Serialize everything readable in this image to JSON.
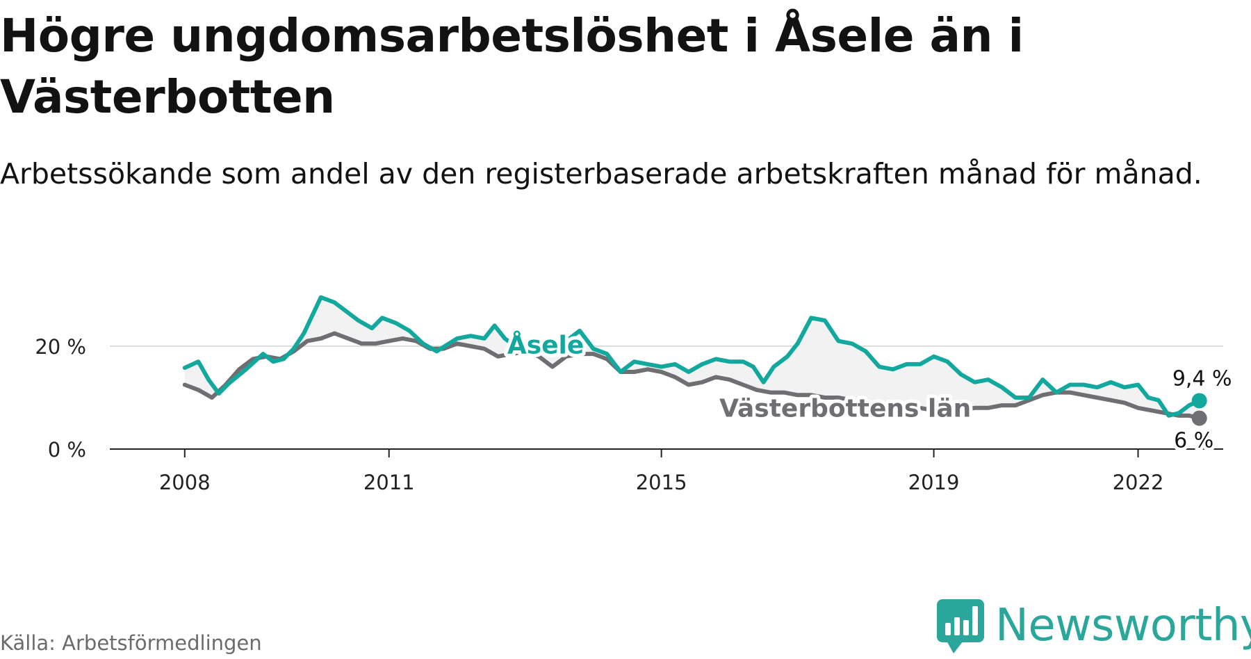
{
  "title": "Högre ungdomsarbetslöshet i Åsele än i Västerbotten",
  "subtitle": "Arbetssökande som andel av den registerbaserade arbetskraften månad för månad.",
  "source": "Källa: Arbetsförmedlingen",
  "brand": "Newsworthy",
  "colors": {
    "asele": "#13a89e",
    "vasterbotten": "#6e6e73",
    "fill": "#f2f2f2",
    "gridline": "#dddddd",
    "axis": "#222222",
    "brand": "#2aa69a"
  },
  "chart_data": {
    "type": "line",
    "title": "Högre ungdomsarbetslöshet i Åsele än i Västerbotten",
    "xlabel": "",
    "ylabel": "",
    "x_range": [
      2006.9,
      2023.25
    ],
    "y_range": [
      0,
      30
    ],
    "y_ticks": [
      {
        "value": 0,
        "label": "0 %"
      },
      {
        "value": 20,
        "label": "20 %"
      }
    ],
    "x_ticks": [
      {
        "value": 2008,
        "label": "2008"
      },
      {
        "value": 2011,
        "label": "2011"
      },
      {
        "value": 2015,
        "label": "2015"
      },
      {
        "value": 2019,
        "label": "2019"
      },
      {
        "value": 2022,
        "label": "2022"
      }
    ],
    "series": [
      {
        "name": "Åsele",
        "label": "Åsele",
        "end_label": "9,4 %",
        "end_value": 9.4,
        "x": [
          2008.0,
          2008.2,
          2008.35,
          2008.5,
          2008.65,
          2008.9,
          2009.15,
          2009.3,
          2009.45,
          2009.6,
          2009.75,
          2010.0,
          2010.2,
          2010.4,
          2010.55,
          2010.75,
          2010.9,
          2011.1,
          2011.3,
          2011.5,
          2011.7,
          2012.0,
          2012.2,
          2012.4,
          2012.55,
          2012.7,
          2012.85,
          2013.0,
          2013.2,
          2013.4,
          2013.6,
          2013.8,
          2014.0,
          2014.2,
          2014.4,
          2014.6,
          2014.8,
          2015.0,
          2015.2,
          2015.4,
          2015.6,
          2015.8,
          2016.0,
          2016.2,
          2016.35,
          2016.5,
          2016.65,
          2016.85,
          2017.0,
          2017.2,
          2017.4,
          2017.6,
          2017.8,
          2018.0,
          2018.2,
          2018.4,
          2018.6,
          2018.8,
          2019.0,
          2019.2,
          2019.4,
          2019.6,
          2019.8,
          2020.0,
          2020.2,
          2020.4,
          2020.6,
          2020.8,
          2021.0,
          2021.2,
          2021.4,
          2021.6,
          2021.8,
          2022.0,
          2022.15,
          2022.3,
          2022.45,
          2022.6,
          2022.75,
          2022.9
        ],
        "y": [
          15.8,
          17.0,
          13.5,
          10.8,
          12.8,
          15.5,
          18.5,
          17.0,
          17.5,
          19.5,
          22.5,
          29.5,
          28.5,
          26.5,
          25.0,
          23.5,
          25.5,
          24.5,
          23.0,
          20.5,
          19.0,
          21.5,
          22.0,
          21.5,
          24.0,
          21.5,
          20.0,
          20.0,
          19.5,
          19.5,
          21.0,
          23.0,
          19.5,
          18.5,
          15.0,
          17.0,
          16.5,
          16.0,
          16.5,
          15.0,
          16.5,
          17.5,
          17.0,
          17.0,
          16.0,
          13.0,
          16.0,
          18.0,
          20.5,
          25.5,
          25.0,
          21.0,
          20.5,
          19.0,
          16.0,
          15.5,
          16.5,
          16.5,
          18.0,
          17.0,
          14.5,
          13.0,
          13.5,
          12.0,
          10.0,
          10.0,
          13.5,
          11.0,
          12.5,
          12.5,
          12.0,
          13.0,
          12.0,
          12.5,
          10.0,
          9.5,
          6.5,
          7.0,
          8.5,
          9.4
        ]
      },
      {
        "name": "Västerbottens län",
        "label": "Västerbottens län",
        "end_label": "6 %",
        "end_value": 6.0,
        "x": [
          2008.0,
          2008.2,
          2008.4,
          2008.6,
          2008.8,
          2009.0,
          2009.2,
          2009.4,
          2009.6,
          2009.8,
          2010.0,
          2010.2,
          2010.4,
          2010.6,
          2010.8,
          2011.0,
          2011.2,
          2011.4,
          2011.6,
          2011.8,
          2012.0,
          2012.2,
          2012.4,
          2012.6,
          2012.8,
          2013.0,
          2013.2,
          2013.4,
          2013.6,
          2013.8,
          2014.0,
          2014.2,
          2014.4,
          2014.6,
          2014.8,
          2015.0,
          2015.2,
          2015.4,
          2015.6,
          2015.8,
          2016.0,
          2016.2,
          2016.4,
          2016.6,
          2016.8,
          2017.0,
          2017.2,
          2017.4,
          2017.6,
          2017.8,
          2018.0,
          2018.2,
          2018.4,
          2018.6,
          2018.8,
          2019.0,
          2019.2,
          2019.4,
          2019.6,
          2019.8,
          2020.0,
          2020.2,
          2020.4,
          2020.6,
          2020.8,
          2021.0,
          2021.2,
          2021.4,
          2021.6,
          2021.8,
          2022.0,
          2022.2,
          2022.4,
          2022.6,
          2022.75,
          2022.9
        ],
        "y": [
          12.5,
          11.5,
          10.0,
          12.5,
          15.5,
          17.5,
          18.0,
          17.5,
          19.0,
          21.0,
          21.5,
          22.5,
          21.5,
          20.5,
          20.5,
          21.0,
          21.5,
          21.0,
          19.5,
          19.5,
          20.5,
          20.0,
          19.5,
          18.0,
          18.5,
          19.0,
          18.0,
          16.0,
          18.0,
          18.5,
          18.5,
          17.5,
          15.0,
          15.0,
          15.5,
          15.0,
          14.0,
          12.5,
          13.0,
          14.0,
          13.5,
          12.5,
          11.5,
          11.0,
          11.0,
          10.5,
          10.5,
          10.0,
          10.0,
          9.5,
          8.5,
          8.0,
          7.5,
          8.0,
          8.0,
          7.5,
          7.5,
          7.5,
          8.0,
          8.0,
          8.5,
          8.5,
          9.5,
          10.5,
          11.0,
          11.0,
          10.5,
          10.0,
          9.5,
          9.0,
          8.0,
          7.5,
          7.0,
          6.5,
          6.5,
          6.0
        ]
      }
    ]
  }
}
